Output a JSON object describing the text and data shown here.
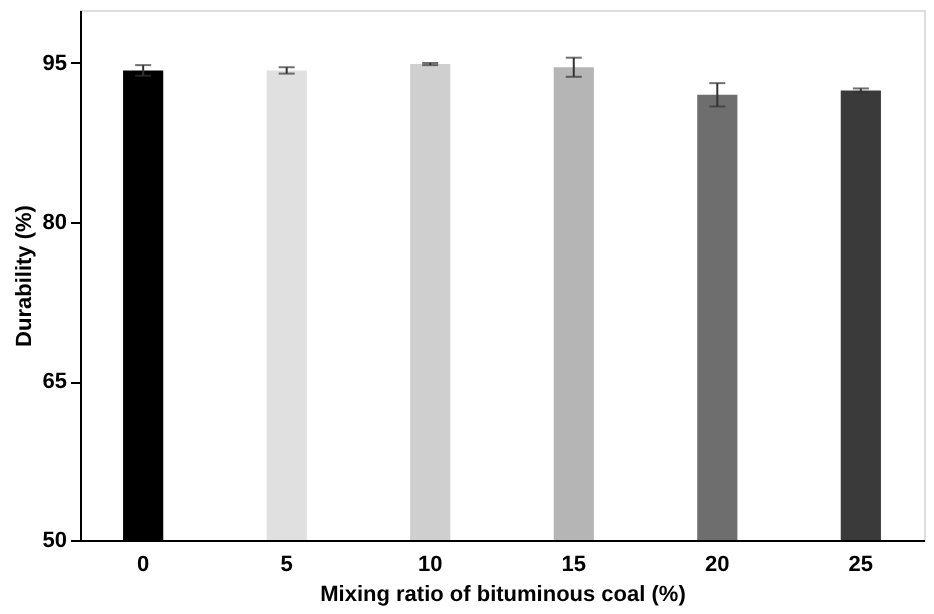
{
  "chart_data": {
    "type": "bar",
    "xlabel": "Mixing ratio of bituminous coal (%)",
    "ylabel": "Durability (%)",
    "categories": [
      "0",
      "5",
      "10",
      "15",
      "20",
      "25"
    ],
    "values": [
      94.3,
      94.3,
      94.9,
      94.6,
      92.0,
      92.4
    ],
    "errors": [
      0.5,
      0.3,
      0.1,
      0.9,
      1.1,
      0.2
    ],
    "colors": [
      "#000000",
      "#e0e0e0",
      "#cfcfcf",
      "#b5b5b5",
      "#6e6e6e",
      "#3a3a3a"
    ],
    "ylim": [
      50,
      100
    ],
    "yticks": [
      50,
      65,
      80,
      95
    ],
    "grid": false
  }
}
